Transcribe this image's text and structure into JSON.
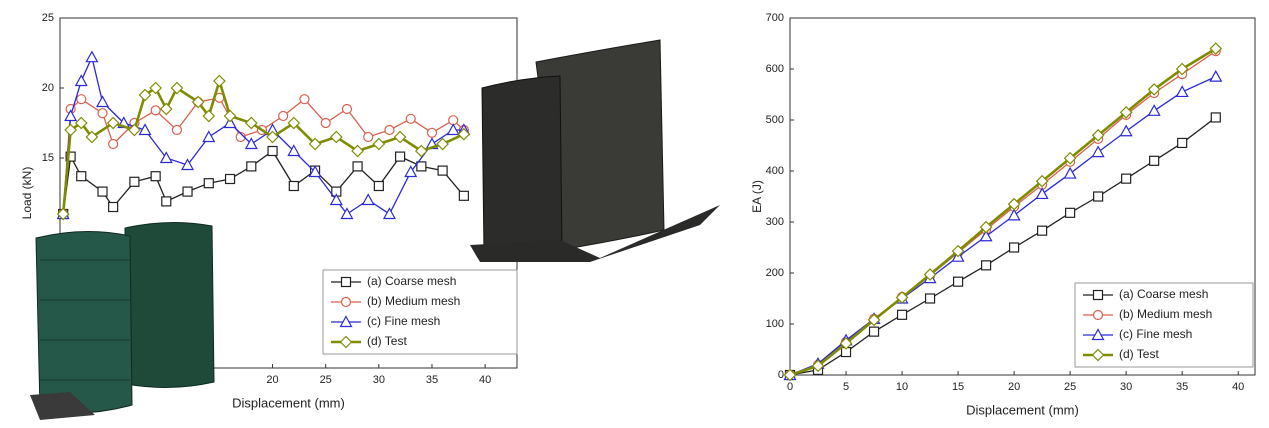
{
  "chart_data": [
    {
      "type": "line",
      "x_label": "Displacement (mm)",
      "y_label": "Load (kN)",
      "xlim": [
        0,
        43
      ],
      "ylim": [
        0,
        25
      ],
      "xticks": [
        20,
        25,
        30,
        35,
        40
      ],
      "yticks": [
        15,
        20,
        25
      ],
      "legend": "lower-right",
      "series": [
        {
          "name": "(a) Coarse mesh",
          "color": "#222222",
          "marker": "square",
          "x": [
            0.3,
            1,
            2,
            4,
            5,
            7,
            9,
            10,
            12,
            14,
            16,
            18,
            20,
            22,
            24,
            26,
            28,
            30,
            32,
            34,
            36,
            38
          ],
          "values": [
            11,
            15.1,
            13.7,
            12.6,
            11.5,
            13.3,
            13.7,
            11.9,
            12.6,
            13.2,
            13.5,
            14.4,
            15.5,
            13,
            14.1,
            12.6,
            14.4,
            13,
            15.1,
            14.4,
            14.1,
            12.3
          ]
        },
        {
          "name": "(b) Medium mesh",
          "color": "#d9604f",
          "marker": "circle",
          "x": [
            0.3,
            1,
            2,
            4,
            5,
            7,
            9,
            11,
            13,
            15,
            17,
            19,
            21,
            23,
            25,
            27,
            29,
            31,
            33,
            35,
            37,
            38
          ],
          "values": [
            11,
            18.5,
            19.2,
            18.2,
            16,
            17.5,
            18.4,
            17,
            19,
            19.3,
            16.5,
            17,
            18,
            19.2,
            17.5,
            18.5,
            16.5,
            17,
            17.8,
            16.8,
            17.7,
            17
          ]
        },
        {
          "name": "(c) Fine mesh",
          "color": "#2a2ad8",
          "marker": "triangle",
          "x": [
            0.3,
            1,
            2,
            3,
            4,
            6,
            8,
            10,
            12,
            14,
            16,
            18,
            20,
            22,
            24,
            26,
            27,
            29,
            31,
            33,
            35,
            37,
            38
          ],
          "values": [
            11,
            18,
            20.5,
            22.2,
            19,
            17.5,
            17,
            15,
            14.5,
            16.5,
            17.5,
            16,
            17,
            15.5,
            14,
            12,
            11,
            12,
            11,
            14,
            16,
            17,
            17
          ]
        },
        {
          "name": "(d) Test",
          "color": "#7f8c00",
          "marker": "diamond",
          "x": [
            0.3,
            1,
            2,
            3,
            5,
            7,
            8,
            9,
            10,
            11,
            13,
            14,
            15,
            16,
            18,
            20,
            22,
            24,
            26,
            28,
            30,
            32,
            34,
            36,
            38
          ],
          "values": [
            11,
            17,
            17.5,
            16.5,
            17.5,
            17,
            19.5,
            20,
            18.5,
            20,
            19,
            18,
            20.5,
            18,
            17.5,
            16.5,
            17.5,
            16,
            16.5,
            15.5,
            16,
            16.5,
            15.5,
            16,
            16.7
          ]
        }
      ]
    },
    {
      "type": "line",
      "x_label": "Displacement (mm)",
      "y_label": "EA (J)",
      "xlim": [
        0,
        41.5
      ],
      "ylim": [
        0,
        700
      ],
      "xticks": [
        0,
        5,
        10,
        15,
        20,
        25,
        30,
        35,
        40
      ],
      "yticks": [
        0,
        100,
        200,
        300,
        400,
        500,
        600,
        700
      ],
      "legend": "lower-right",
      "series": [
        {
          "name": "(a) Coarse mesh",
          "color": "#222222",
          "marker": "square",
          "x": [
            0,
            2.5,
            5,
            7.5,
            10,
            12.5,
            15,
            17.5,
            20,
            22.5,
            25,
            27.5,
            30,
            32.5,
            35,
            38
          ],
          "values": [
            0,
            10,
            45,
            85,
            118,
            150,
            183,
            215,
            250,
            283,
            318,
            350,
            385,
            420,
            455,
            505
          ]
        },
        {
          "name": "(b) Medium mesh",
          "color": "#d9604f",
          "marker": "circle",
          "x": [
            0,
            2.5,
            5,
            7.5,
            10,
            12.5,
            15,
            17.5,
            20,
            22.5,
            25,
            27.5,
            30,
            32.5,
            35,
            38
          ],
          "values": [
            0,
            20,
            65,
            110,
            153,
            195,
            240,
            285,
            330,
            373,
            418,
            463,
            510,
            553,
            590,
            635
          ]
        },
        {
          "name": "(c) Fine mesh",
          "color": "#2a2ad8",
          "marker": "triangle",
          "x": [
            0,
            2.5,
            5,
            7.5,
            10,
            12.5,
            15,
            17.5,
            20,
            22.5,
            25,
            27.5,
            30,
            32.5,
            35,
            38
          ],
          "values": [
            0,
            22,
            68,
            110,
            150,
            190,
            232,
            272,
            313,
            355,
            395,
            437,
            478,
            518,
            555,
            585
          ]
        },
        {
          "name": "(d) Test",
          "color": "#7f8c00",
          "marker": "diamond",
          "x": [
            0,
            2.5,
            5,
            7.5,
            10,
            12.5,
            15,
            17.5,
            20,
            22.5,
            25,
            27.5,
            30,
            32.5,
            35,
            38
          ],
          "values": [
            0,
            18,
            62,
            108,
            152,
            197,
            243,
            290,
            335,
            380,
            425,
            470,
            515,
            560,
            600,
            640
          ]
        }
      ]
    }
  ]
}
